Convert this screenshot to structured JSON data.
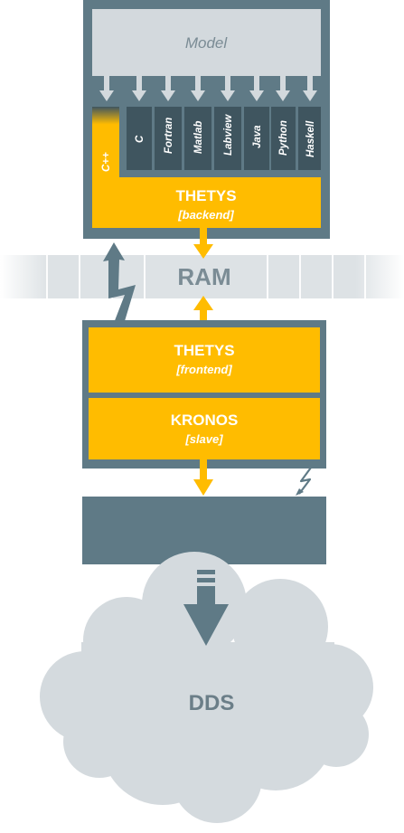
{
  "model": {
    "label": "Model"
  },
  "languages": [
    "C++",
    "C",
    "Fortran",
    "Matlab",
    "Labview",
    "Java",
    "Python",
    "Haskell"
  ],
  "backend": {
    "title": "THETYS",
    "subtitle": "[backend]"
  },
  "ram": {
    "label": "RAM"
  },
  "frontend": {
    "title": "THETYS",
    "subtitle": "[frontend]"
  },
  "slave": {
    "title": "KRONOS",
    "subtitle": "[slave]"
  },
  "dds": {
    "label": "DDS"
  },
  "colors": {
    "slate": "#5f7a86",
    "light_gray": "#d3d9dd",
    "ram_band": "#dde2e5",
    "yellow": "#ffbc00",
    "dark_lang": "#3f555f",
    "cloud": "#d4dade",
    "text_gray": "#7b8c95",
    "text_gray_dark": "#6b7e88"
  }
}
